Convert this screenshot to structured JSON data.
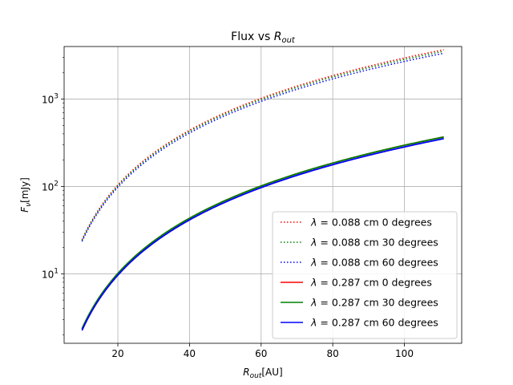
{
  "chart_data": {
    "type": "line",
    "title": "Flux vs R_out",
    "title_parts": {
      "main": "Flux vs ",
      "sym": "R",
      "sub": "out"
    },
    "xlabel": "R_out[AU]",
    "xlabel_parts": {
      "sym": "R",
      "sub": "out",
      "unit": "[AU]"
    },
    "ylabel": "F_ν[mJy]",
    "ylabel_parts": {
      "sym": "F",
      "sub": "ν",
      "unit": "[mJy]"
    },
    "x_scale": "linear",
    "y_scale": "log",
    "xlim": [
      5,
      116
    ],
    "ylim": [
      1.6,
      4000
    ],
    "x_ticks": [
      20,
      40,
      60,
      80,
      100
    ],
    "x_tick_labels": [
      "20",
      "40",
      "60",
      "80",
      "100"
    ],
    "y_ticks": [
      10,
      100,
      1000
    ],
    "y_tick_labels": [
      {
        "base": "10",
        "exp": "1"
      },
      {
        "base": "10",
        "exp": "2"
      },
      {
        "base": "10",
        "exp": "3"
      }
    ],
    "grid": true,
    "legend_position": "lower-right",
    "x_range": [
      10,
      111
    ],
    "series": [
      {
        "name": "λ = 0.088 cm 0 degrees",
        "legend": {
          "sym": "λ",
          "text": " = 0.088 cm 0 degrees"
        },
        "color": "#ff0000",
        "style": "dotted",
        "amplitude": 24.6,
        "exponent": 2.08
      },
      {
        "name": "λ = 0.088 cm 30 degrees",
        "legend": {
          "sym": "λ",
          "text": " = 0.088 cm 30 degrees"
        },
        "color": "#008000",
        "style": "dotted",
        "amplitude": 24.2,
        "exponent": 2.07
      },
      {
        "name": "λ = 0.088 cm 60 degrees",
        "legend": {
          "sym": "λ",
          "text": " = 0.088 cm 60 degrees"
        },
        "color": "#0000ff",
        "style": "dotted",
        "amplitude": 23.5,
        "exponent": 2.06
      },
      {
        "name": "λ = 0.287 cm 0 degrees",
        "legend": {
          "sym": "λ",
          "text": " = 0.287 cm 0 degrees"
        },
        "color": "#ff0000",
        "style": "solid",
        "amplitude": 2.35,
        "exponent": 2.1
      },
      {
        "name": "λ = 0.287 cm 30 degrees",
        "legend": {
          "sym": "λ",
          "text": " = 0.287 cm 30 degrees"
        },
        "color": "#008000",
        "style": "solid",
        "amplitude": 2.35,
        "exponent": 2.1
      },
      {
        "name": "λ = 0.287 cm 60 degrees",
        "legend": {
          "sym": "λ",
          "text": " = 0.287 cm 60 degrees"
        },
        "color": "#0000ff",
        "style": "solid",
        "amplitude": 2.25,
        "exponent": 2.1
      }
    ]
  }
}
